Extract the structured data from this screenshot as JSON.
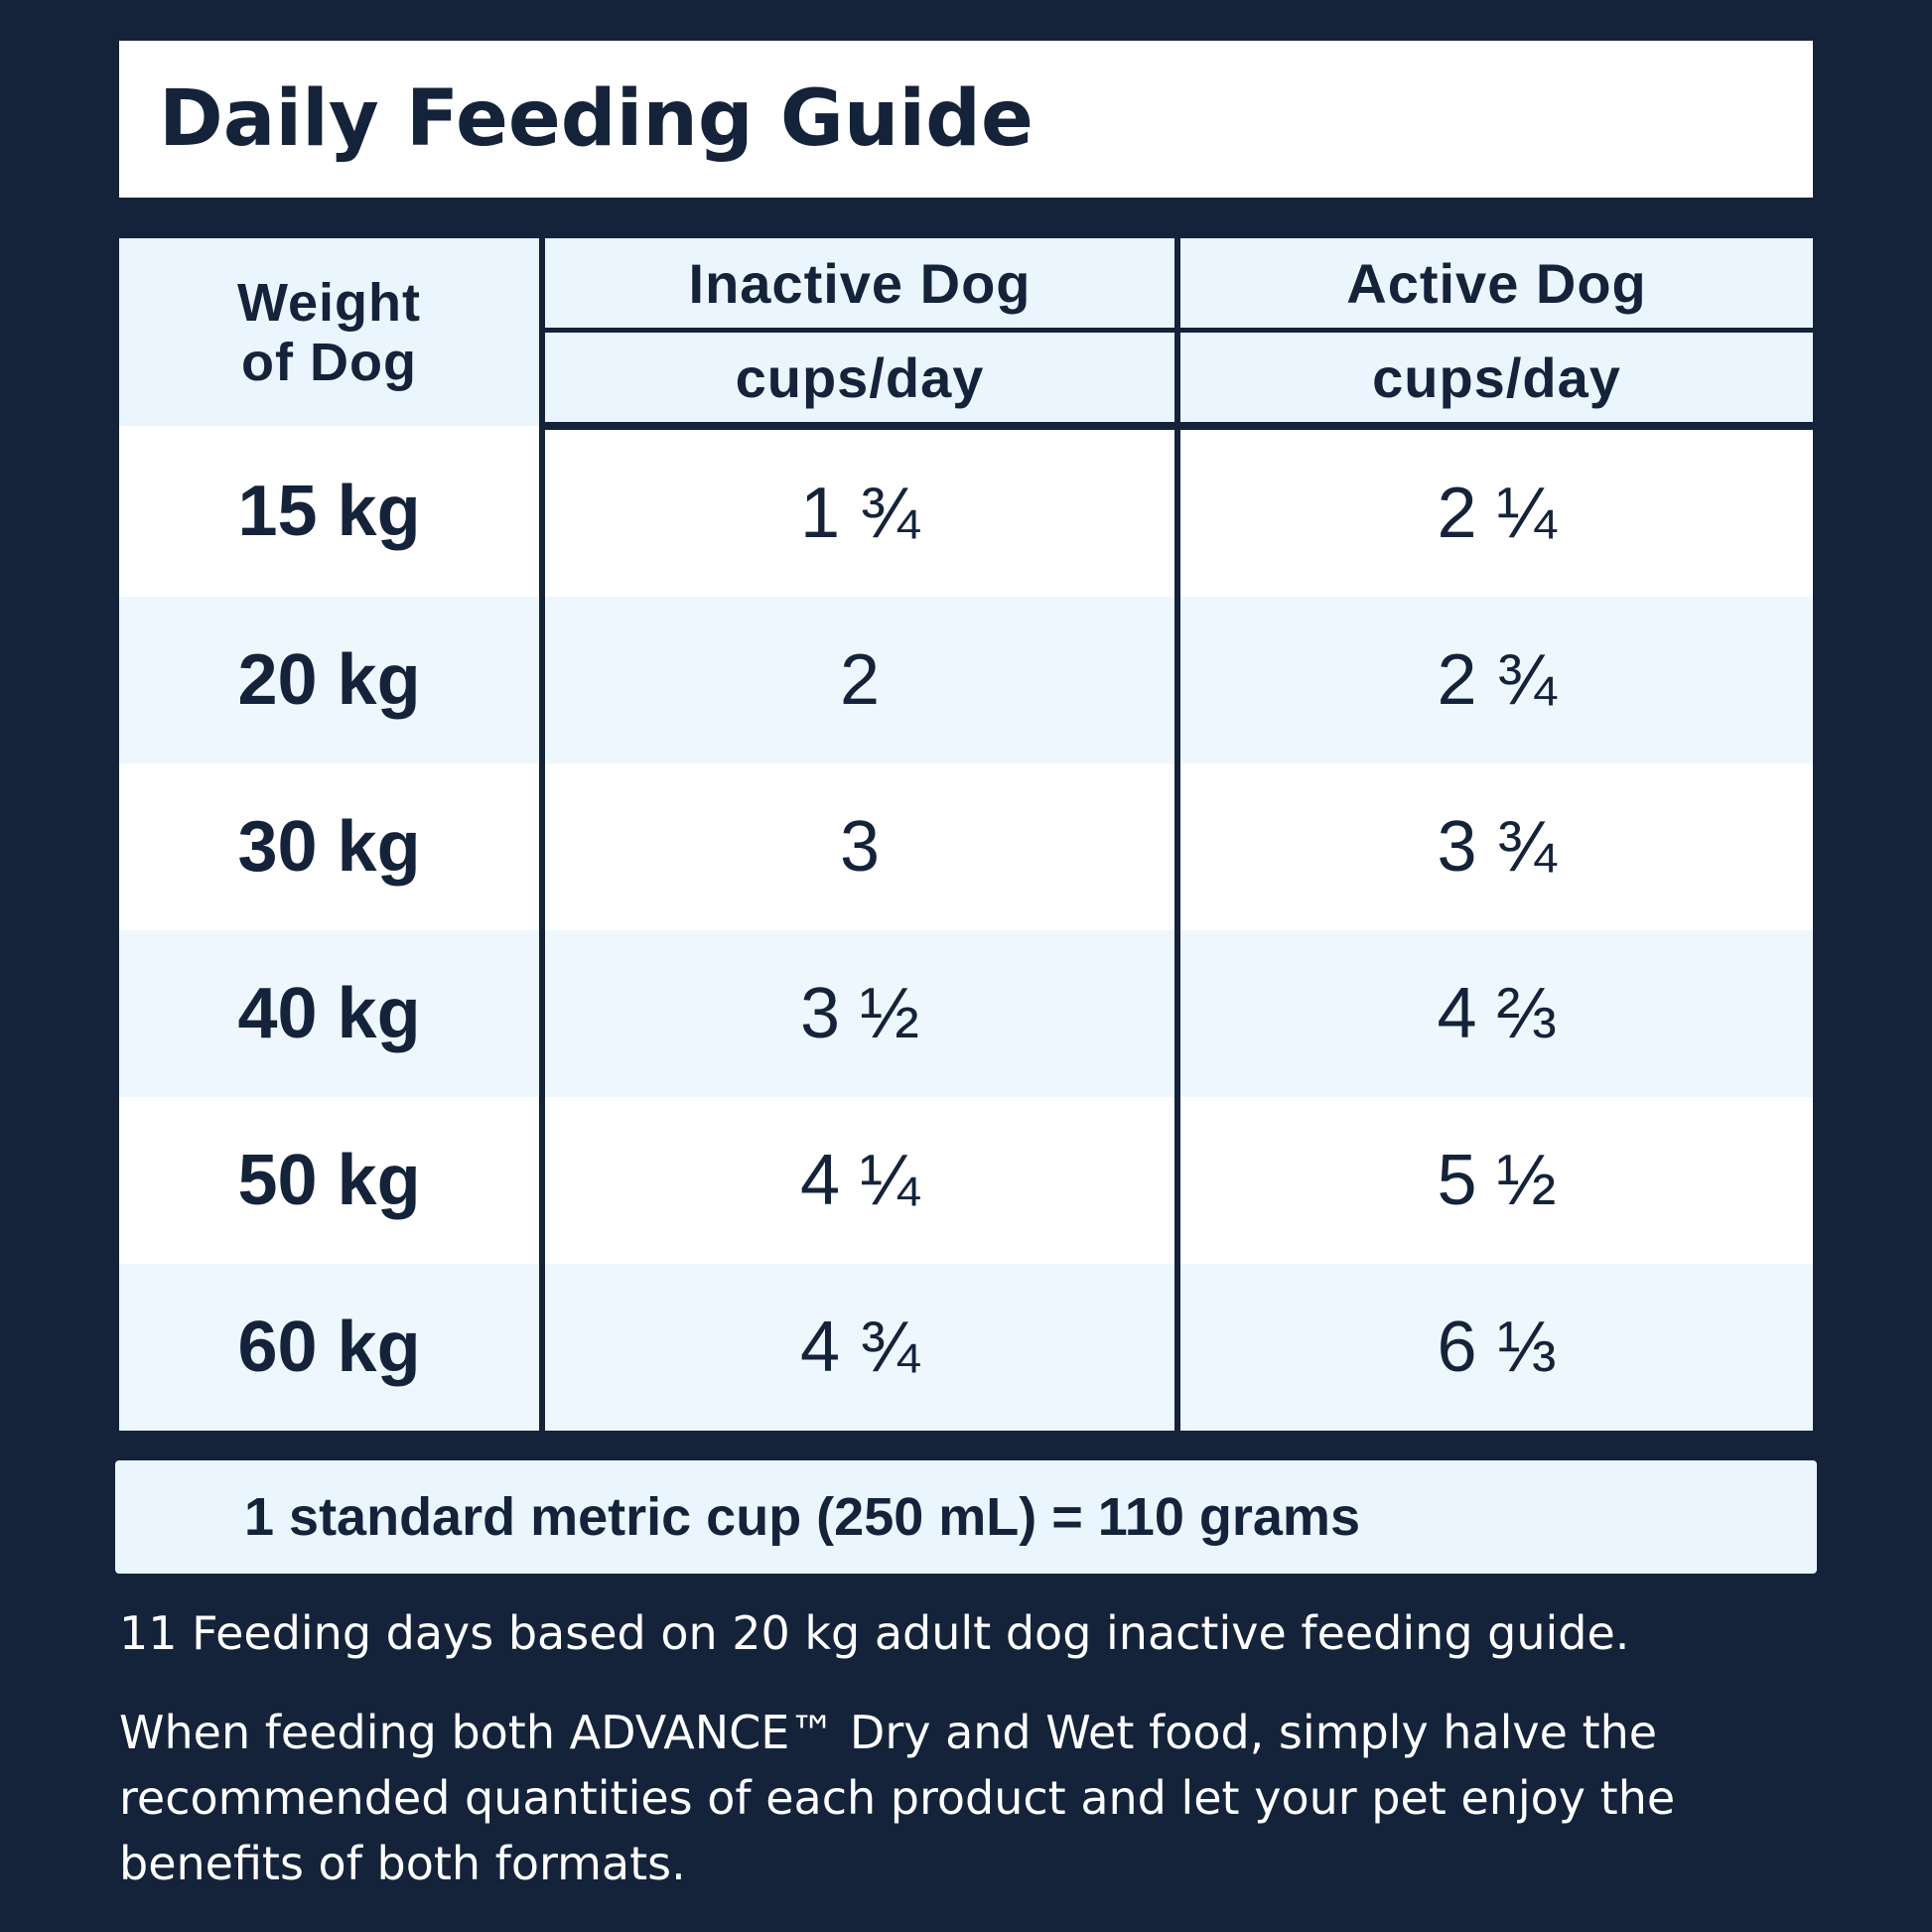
{
  "title": "Daily Feeding Guide",
  "table": {
    "header": {
      "weight": "Weight of Dog",
      "inactive": "Inactive Dog",
      "active": "Active Dog",
      "unit_inactive": "cups/day",
      "unit_active": "cups/day"
    },
    "rows": [
      {
        "weight": "15 kg",
        "inactive": "1 ¾",
        "active": "2 ¼"
      },
      {
        "weight": "20 kg",
        "inactive": "2",
        "active": "2 ¾"
      },
      {
        "weight": "30 kg",
        "inactive": "3",
        "active": "3 ¾"
      },
      {
        "weight": "40 kg",
        "inactive": "3 ½",
        "active": "4 ⅔"
      },
      {
        "weight": "50 kg",
        "inactive": "4 ¼",
        "active": "5 ½"
      },
      {
        "weight": "60 kg",
        "inactive": "4 ¾",
        "active": "6 ⅓"
      }
    ]
  },
  "note": "1 standard metric cup (250 mL) = 110 grams",
  "footnotes": [
    "11 Feeding days based on 20 kg adult dog inactive feeding guide.",
    "When feeding both ADVANCE™ Dry and Wet food, simply halve the recommended quantities of each product and let your pet enjoy the benefits of both formats."
  ],
  "colors": {
    "background": "#14233a",
    "panel": "#ffffff",
    "row_alt": "#eef7fe",
    "text_dark": "#14233a"
  }
}
